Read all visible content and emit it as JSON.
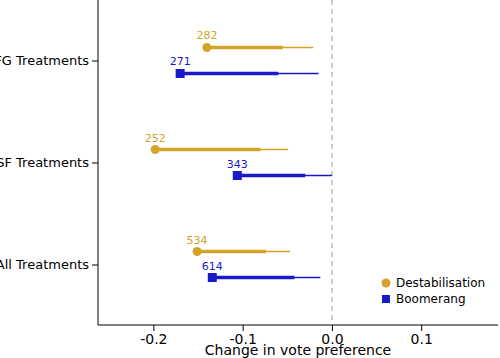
{
  "chart_data": {
    "type": "dot_interval",
    "orientation": "horizontal",
    "x_label": "Change in vote preference",
    "categories": [
      "FG Treatments",
      "SF Treatments",
      "All Treatments"
    ],
    "xlim": [
      -0.262,
      0.186
    ],
    "xticks": [
      -0.2,
      -0.1,
      {
        "value": 0,
        "label": "0.0"
      },
      0.1
    ],
    "reference_line": 0,
    "legend": "lower right",
    "grid": false,
    "series": [
      {
        "name": "Destabilisation",
        "color": "#d4a42a",
        "marker": "circle",
        "values": [
          -0.14,
          -0.198,
          -0.151
        ],
        "inner_end": [
          -0.055,
          -0.08,
          -0.074
        ],
        "outer_end": [
          -0.021,
          -0.049,
          -0.047
        ],
        "sample_sizes": [
          282,
          252,
          534
        ]
      },
      {
        "name": "Boomerang",
        "color": "#1a1ac8",
        "marker": "square",
        "values": [
          -0.17,
          -0.106,
          -0.134
        ],
        "inner_end": [
          -0.06,
          -0.03,
          -0.042
        ],
        "outer_end": [
          -0.015,
          0.0,
          -0.013
        ],
        "sample_sizes": [
          271,
          343,
          614
        ]
      }
    ]
  }
}
